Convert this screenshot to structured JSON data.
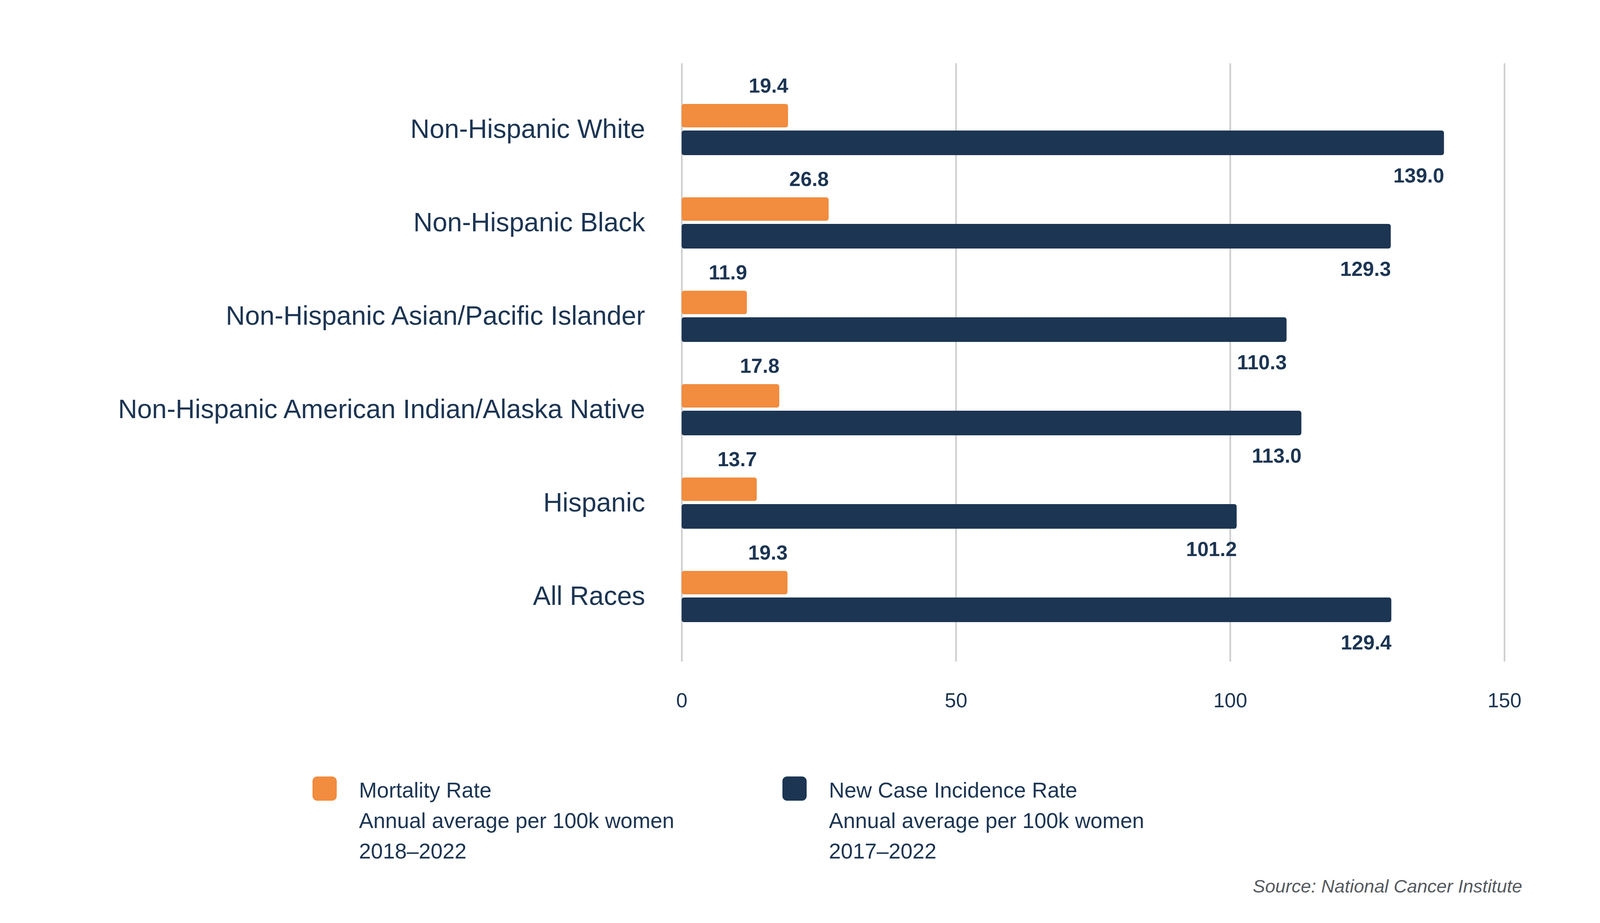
{
  "chart_data": {
    "type": "bar",
    "orientation": "horizontal",
    "categories": [
      "Non-Hispanic White",
      "Non-Hispanic Black",
      "Non-Hispanic Asian/Pacific Islander",
      "Non-Hispanic American Indian/Alaska Native",
      "Hispanic",
      "All Races"
    ],
    "series": [
      {
        "name": "Mortality Rate\nAnnual average per 100k women\n2018–2022",
        "color": "#f28c3e",
        "values": [
          19.4,
          26.8,
          11.9,
          17.8,
          13.7,
          19.3
        ],
        "value_labels": [
          "19.4",
          "26.8",
          "11.9",
          "17.8",
          "13.7",
          "19.3"
        ]
      },
      {
        "name": "New Case Incidence Rate\nAnnual average per 100k women\n2017–2022",
        "color": "#1c3553",
        "values": [
          139.0,
          129.3,
          110.3,
          113.0,
          101.2,
          129.4
        ],
        "value_labels": [
          "139.0",
          "129.3",
          "110.3",
          "113.0",
          "101.2",
          "129.4"
        ]
      }
    ],
    "xlim": [
      0,
      150
    ],
    "xticks": [
      0,
      50,
      100,
      150
    ],
    "grid": true,
    "data_labels": true,
    "legend": "bottom",
    "caption": "Source: National Cancer Institute"
  }
}
